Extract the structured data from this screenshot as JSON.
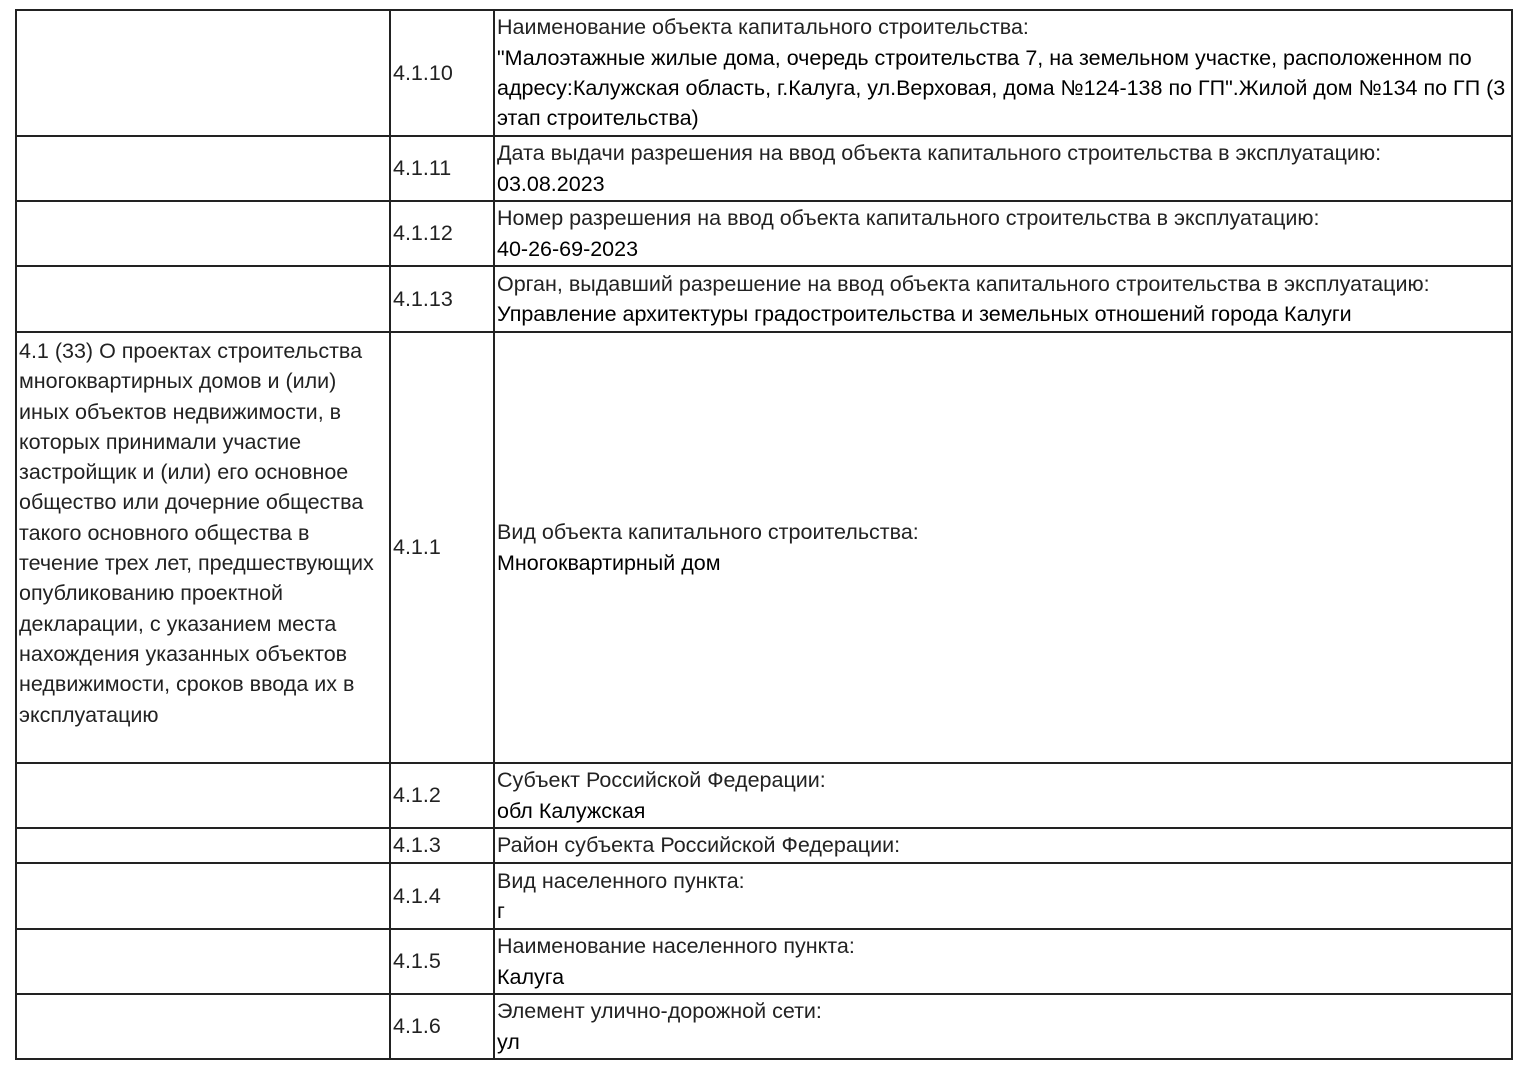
{
  "rows": [
    {
      "section": "",
      "code": "4.1.10",
      "label": "Наименование объекта капитального строительства:",
      "value": "\"Малоэтажные жилые дома, очередь строительства 7, на земельном участке, расположенном по адресу:Калужская область, г.Калуга, ул.Верховая, дома №124-138 по ГП\".Жилой дом №134 по ГП (3 этап строительства)"
    },
    {
      "section": "",
      "code": "4.1.11",
      "label": "Дата выдачи разрешения на ввод объекта капитального строительства в эксплуатацию:",
      "value": "03.08.2023"
    },
    {
      "section": "",
      "code": "4.1.12",
      "label": "Номер разрешения на ввод объекта капитального строительства в эксплуатацию:",
      "value": "40-26-69-2023"
    },
    {
      "section": "",
      "code": "4.1.13",
      "label": "Орган, выдавший разрешение на ввод объекта капитального строительства в эксплуатацию:",
      "value": "Управление архитектуры градостроительства и земельных отношений города Калуги"
    },
    {
      "section": "4.1 (33) О проектах строительства многоквартирных домов и (или) иных объектов недвижимости, в которых принимали участие застройщик и (или) его основное общество или дочерние общества такого основного общества в течение трех лет, предшествующих опубликованию проектной декларации, с указанием места нахождения указанных объектов недвижимости, сроков ввода их в эксплуатацию",
      "code": "4.1.1",
      "label": "Вид объекта капитального строительства:",
      "value": "Многоквартирный дом"
    },
    {
      "section": "",
      "code": "4.1.2",
      "label": "Субъект Российской Федерации:",
      "value": "обл Калужская"
    },
    {
      "section": "",
      "code": "4.1.3",
      "label": "Район субъекта Российской Федерации:",
      "value": ""
    },
    {
      "section": "",
      "code": "4.1.4",
      "label": "Вид населенного пункта:",
      "value": "г"
    },
    {
      "section": "",
      "code": "4.1.5",
      "label": "Наименование населенного пункта:",
      "value": "Калуга"
    },
    {
      "section": "",
      "code": "4.1.6",
      "label": "Элемент улично-дорожной сети:",
      "value": "ул"
    }
  ]
}
